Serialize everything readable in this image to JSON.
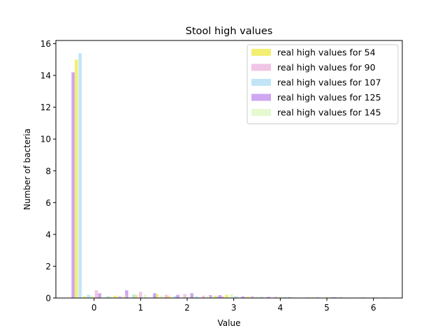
{
  "chart_data": {
    "type": "bar",
    "title": "Stool high values",
    "xlabel": "Value",
    "ylabel": "Number of bacteria",
    "xlim": [
      -0.82,
      6.62
    ],
    "ylim": [
      0,
      16.2
    ],
    "xticks": [
      0,
      1,
      2,
      3,
      4,
      5,
      6
    ],
    "yticks": [
      0,
      2,
      4,
      6,
      8,
      10,
      12,
      14,
      16
    ],
    "legend_position": "top-right",
    "grid": false,
    "bar_width": 0.068,
    "series": [
      {
        "name": "real high values for 54",
        "color": "#f0ec5a",
        "points": [
          [
            -0.38,
            15.0
          ],
          [
            -0.2,
            0.1
          ],
          [
            0.05,
            0.12
          ],
          [
            0.45,
            0.15
          ],
          [
            0.9,
            0.2
          ],
          [
            1.35,
            0.25
          ],
          [
            1.6,
            0.15
          ],
          [
            2.1,
            0.1
          ],
          [
            2.6,
            0.15
          ],
          [
            2.85,
            0.2
          ],
          [
            3.3,
            0.08
          ],
          [
            4.0,
            0.05
          ],
          [
            4.7,
            0.04
          ],
          [
            5.0,
            0.04
          ],
          [
            5.4,
            0.03
          ]
        ]
      },
      {
        "name": "real high values for 90",
        "color": "#eebbe0",
        "points": [
          [
            0.05,
            0.48
          ],
          [
            0.55,
            0.12
          ],
          [
            1.0,
            0.38
          ],
          [
            1.55,
            0.2
          ],
          [
            1.95,
            0.25
          ],
          [
            2.35,
            0.15
          ],
          [
            2.75,
            0.12
          ],
          [
            3.4,
            0.12
          ],
          [
            3.9,
            0.08
          ],
          [
            4.6,
            0.05
          ],
          [
            5.1,
            0.04
          ],
          [
            5.8,
            0.04
          ]
        ]
      },
      {
        "name": "real high values for 107",
        "color": "#b6e0f6",
        "points": [
          [
            -0.3,
            15.4
          ],
          [
            -0.12,
            0.2
          ],
          [
            0.3,
            0.12
          ],
          [
            0.85,
            0.22
          ],
          [
            1.3,
            0.15
          ],
          [
            1.75,
            0.12
          ],
          [
            2.2,
            0.1
          ],
          [
            2.65,
            0.1
          ],
          [
            3.05,
            0.12
          ],
          [
            3.6,
            0.08
          ],
          [
            4.1,
            0.06
          ],
          [
            4.6,
            0.05
          ],
          [
            5.2,
            0.05
          ],
          [
            5.75,
            0.04
          ],
          [
            6.05,
            0.05
          ],
          [
            6.25,
            0.04
          ]
        ]
      },
      {
        "name": "real high values for 125",
        "color": "#c796ee",
        "points": [
          [
            -0.45,
            14.2
          ],
          [
            0.12,
            0.3
          ],
          [
            0.7,
            0.48
          ],
          [
            1.3,
            0.3
          ],
          [
            1.8,
            0.2
          ],
          [
            2.1,
            0.3
          ],
          [
            2.5,
            0.18
          ],
          [
            2.7,
            0.18
          ],
          [
            3.2,
            0.1
          ],
          [
            3.75,
            0.07
          ],
          [
            4.2,
            0.05
          ],
          [
            4.8,
            0.04
          ],
          [
            5.15,
            0.05
          ],
          [
            5.3,
            0.04
          ]
        ]
      },
      {
        "name": "real high values for 145",
        "color": "#e2f8c8",
        "points": [
          [
            -0.05,
            0.15
          ],
          [
            0.35,
            0.12
          ],
          [
            0.65,
            0.18
          ],
          [
            1.1,
            0.2
          ],
          [
            1.45,
            0.15
          ],
          [
            2.0,
            0.1
          ],
          [
            2.45,
            0.12
          ],
          [
            2.95,
            0.25
          ],
          [
            3.5,
            0.1
          ],
          [
            4.3,
            0.06
          ],
          [
            5.6,
            0.04
          ]
        ]
      }
    ]
  }
}
